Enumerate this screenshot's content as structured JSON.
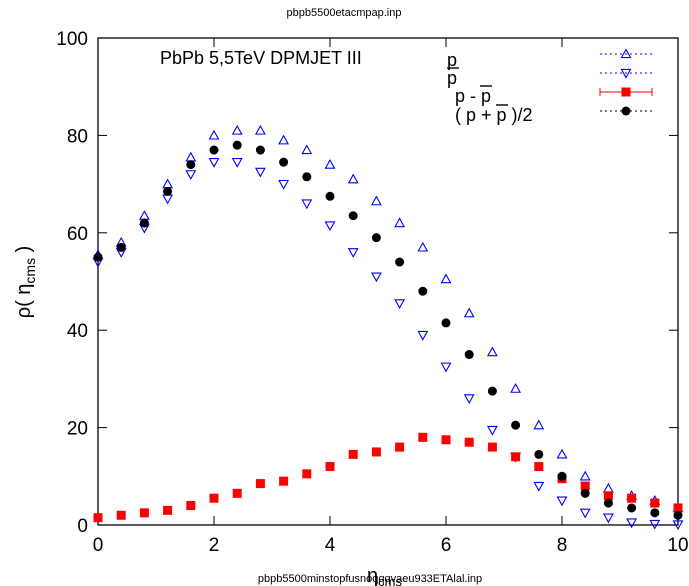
{
  "header": {
    "file_label": "pbpb5500etacmpap.inp"
  },
  "footer": {
    "file_label": "pbpb5500minstopfusnoqqqvaeu933ETAlal.inp"
  },
  "chart_data": {
    "type": "scatter",
    "title": "",
    "annotation": "PbPb  5,5TeV DPMJET III",
    "xlabel_main": "η",
    "xlabel_sub": "cms",
    "ylabel_main": "ρ( η",
    "ylabel_sub": "cms",
    "ylabel_close": " )",
    "xlim": [
      0,
      10
    ],
    "ylim": [
      0,
      100
    ],
    "x_ticks": [
      0,
      2,
      4,
      6,
      8,
      10
    ],
    "y_ticks": [
      0,
      20,
      40,
      60,
      80,
      100
    ],
    "grid": false,
    "legend_position": "top-right",
    "legend_text": {
      "p": "p",
      "pbar": "p",
      "diff_a": "p - ",
      "diff_b": "p",
      "avg_a": "( p + ",
      "avg_b": "p",
      "avg_c": " )/2"
    },
    "x": [
      0,
      0.4,
      0.8,
      1.2,
      1.6,
      2.0,
      2.4,
      2.8,
      3.2,
      3.6,
      4.0,
      4.4,
      4.8,
      5.2,
      5.6,
      6.0,
      6.4,
      6.8,
      7.2,
      7.6,
      8.0,
      8.4,
      8.8,
      9.2,
      9.6,
      10.0
    ],
    "series": [
      {
        "color": "#0000ff",
        "marker": "triangle-up",
        "values": [
          55.5,
          58,
          63.5,
          70,
          75.5,
          80,
          81,
          81,
          79,
          77,
          74,
          71,
          66.5,
          62,
          57,
          50.5,
          43.5,
          35.5,
          28,
          20.5,
          14.5,
          10,
          7.5,
          6,
          5,
          3.5
        ]
      },
      {
        "color": "#0000ff",
        "marker": "triangle-down",
        "values": [
          54,
          56,
          61,
          67,
          72,
          74.5,
          74.5,
          72.5,
          70,
          66,
          61.5,
          56,
          51,
          45.5,
          39,
          32.5,
          26,
          19.5,
          14,
          8,
          5,
          2.5,
          1.5,
          0.5,
          0.2,
          0.1
        ]
      },
      {
        "color": "#ff0000",
        "marker": "square",
        "values": [
          1.5,
          2,
          2.5,
          3,
          4,
          5.5,
          6.5,
          8.5,
          9,
          10.5,
          12,
          14.5,
          15,
          16,
          18,
          17.5,
          17,
          16,
          14,
          12,
          9.5,
          8,
          6,
          5.5,
          4.5,
          3.5
        ]
      },
      {
        "color": "#000000",
        "marker": "circle",
        "values": [
          55,
          57,
          62,
          68.5,
          74,
          77,
          78,
          77,
          74.5,
          71.5,
          67.5,
          63.5,
          59,
          54,
          48,
          41.5,
          35,
          27.5,
          20.5,
          14.5,
          10,
          6.5,
          4.5,
          3.5,
          2.5,
          2
        ]
      }
    ]
  }
}
